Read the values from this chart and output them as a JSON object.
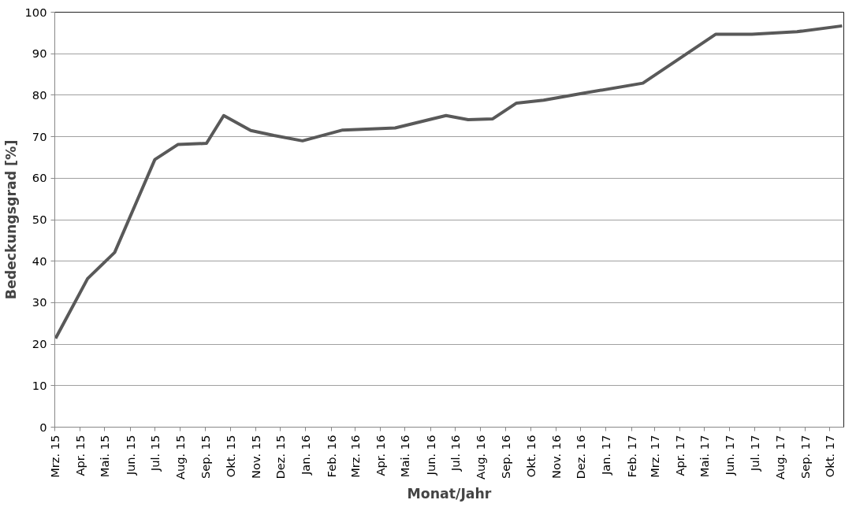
{
  "chart_data": {
    "type": "line",
    "xlabel": "Monat/Jahr",
    "ylabel": "Bedeckungsgrad [%]",
    "x": [
      "2015-03-02",
      "2015-04-10",
      "2015-05-13",
      "2015-07-01",
      "2015-07-29",
      "2015-09-02",
      "2015-09-23",
      "2015-10-26",
      "2015-11-23",
      "2015-12-28",
      "2016-02-15",
      "2016-04-19",
      "2016-06-20",
      "2016-07-17",
      "2016-08-16",
      "2016-09-14",
      "2016-10-17",
      "2016-12-05",
      "2017-02-15",
      "2017-05-15",
      "2017-06-28",
      "2017-08-22",
      "2017-10-16"
    ],
    "series": [
      {
        "color": "#595959",
        "values": [
          21.4,
          35.8,
          42.1,
          64.5,
          68.1,
          68.4,
          75.1,
          71.5,
          70.3,
          69.0,
          71.6,
          72.1,
          75.1,
          74.1,
          74.3,
          78.1,
          78.8,
          80.5,
          82.9,
          94.7,
          94.7,
          95.3,
          96.7
        ]
      }
    ],
    "xlim": [
      "2015-03-01",
      "2017-10-18"
    ],
    "xticks": [
      {
        "value": "2015-03-01",
        "label": "Mrz. 15"
      },
      {
        "value": "2015-04-01",
        "label": "Apr. 15"
      },
      {
        "value": "2015-05-01",
        "label": "Mai. 15"
      },
      {
        "value": "2015-06-01",
        "label": "Jun. 15"
      },
      {
        "value": "2015-07-01",
        "label": "Jul. 15"
      },
      {
        "value": "2015-08-01",
        "label": "Aug. 15"
      },
      {
        "value": "2015-09-01",
        "label": "Sep. 15"
      },
      {
        "value": "2015-10-01",
        "label": "Okt. 15"
      },
      {
        "value": "2015-11-01",
        "label": "Nov. 15"
      },
      {
        "value": "2015-12-01",
        "label": "Dez. 15"
      },
      {
        "value": "2016-01-01",
        "label": "Jan. 16"
      },
      {
        "value": "2016-02-01",
        "label": "Feb. 16"
      },
      {
        "value": "2016-03-01",
        "label": "Mrz. 16"
      },
      {
        "value": "2016-04-01",
        "label": "Apr. 16"
      },
      {
        "value": "2016-05-01",
        "label": "Mai. 16"
      },
      {
        "value": "2016-06-01",
        "label": "Jun. 16"
      },
      {
        "value": "2016-07-01",
        "label": "Jul. 16"
      },
      {
        "value": "2016-08-01",
        "label": "Aug. 16"
      },
      {
        "value": "2016-09-01",
        "label": "Sep. 16"
      },
      {
        "value": "2016-10-01",
        "label": "Okt. 16"
      },
      {
        "value": "2016-11-01",
        "label": "Nov. 16"
      },
      {
        "value": "2016-12-01",
        "label": "Dez. 16"
      },
      {
        "value": "2017-01-01",
        "label": "Jan. 17"
      },
      {
        "value": "2017-02-01",
        "label": "Feb. 17"
      },
      {
        "value": "2017-03-01",
        "label": "Mrz. 17"
      },
      {
        "value": "2017-04-01",
        "label": "Apr. 17"
      },
      {
        "value": "2017-05-01",
        "label": "Mai. 17"
      },
      {
        "value": "2017-06-01",
        "label": "Jun. 17"
      },
      {
        "value": "2017-07-01",
        "label": "Jul. 17"
      },
      {
        "value": "2017-08-01",
        "label": "Aug. 17"
      },
      {
        "value": "2017-09-01",
        "label": "Sep. 17"
      },
      {
        "value": "2017-10-01",
        "label": "Okt. 17"
      }
    ],
    "ylim": [
      0,
      100
    ],
    "yticks": [
      0,
      10,
      20,
      30,
      40,
      50,
      60,
      70,
      80,
      90,
      100
    ],
    "grid": "y",
    "line_style": "solid",
    "marker": "none"
  }
}
